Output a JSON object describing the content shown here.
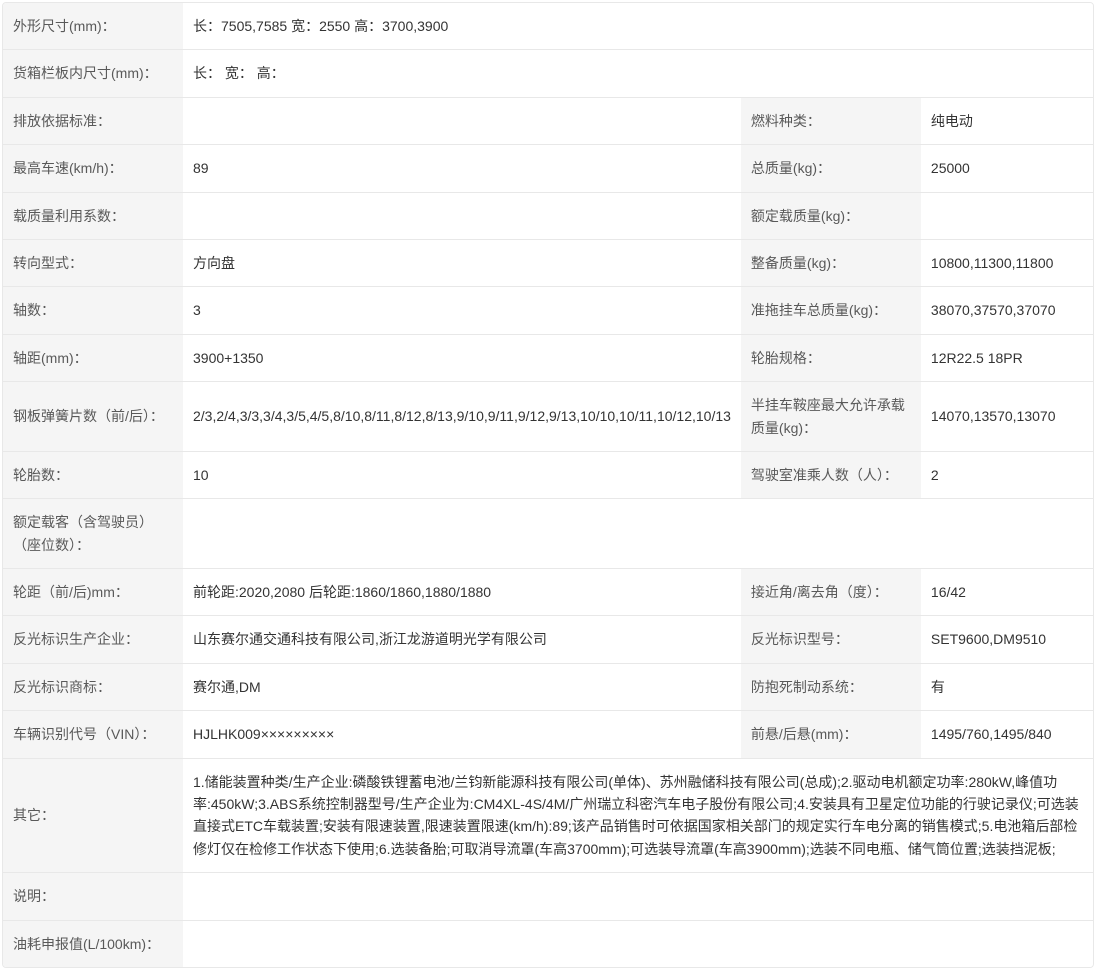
{
  "rows": [
    {
      "type": "full",
      "label": "外形尺寸(mm)：",
      "value": "长：7505,7585 宽：2550 高：3700,3900"
    },
    {
      "type": "full",
      "label": "货箱栏板内尺寸(mm)：",
      "value": "长： 宽： 高："
    },
    {
      "type": "split",
      "label1": "排放依据标准：",
      "value1": "",
      "label2": "燃料种类：",
      "value2": "纯电动"
    },
    {
      "type": "split",
      "label1": "最高车速(km/h)：",
      "value1": "89",
      "label2": "总质量(kg)：",
      "value2": "25000"
    },
    {
      "type": "split",
      "label1": "载质量利用系数：",
      "value1": "",
      "label2": "额定载质量(kg)：",
      "value2": ""
    },
    {
      "type": "split",
      "label1": "转向型式：",
      "value1": "方向盘",
      "label2": "整备质量(kg)：",
      "value2": "10800,11300,11800"
    },
    {
      "type": "split",
      "label1": "轴数：",
      "value1": "3",
      "label2": "准拖挂车总质量(kg)：",
      "value2": "38070,37570,37070"
    },
    {
      "type": "split",
      "label1": "轴距(mm)：",
      "value1": "3900+1350",
      "label2": "轮胎规格：",
      "value2": "12R22.5 18PR"
    },
    {
      "type": "split",
      "label1": "钢板弹簧片数（前/后）：",
      "value1": "2/3,2/4,3/3,3/4,3/5,4/5,8/10,8/11,8/12,8/13,9/10,9/11,9/12,9/13,10/10,10/11,10/12,10/13",
      "label2": "半挂车鞍座最大允许承载质量(kg)：",
      "value2": "14070,13570,13070"
    },
    {
      "type": "split",
      "label1": "轮胎数：",
      "value1": "10",
      "label2": "驾驶室准乘人数（人）：",
      "value2": "2"
    },
    {
      "type": "full",
      "label": "额定载客（含驾驶员）（座位数）：",
      "value": ""
    },
    {
      "type": "split",
      "label1": "轮距（前/后)mm：",
      "value1": "前轮距:2020,2080 后轮距:1860/1860,1880/1880",
      "label2": "接近角/离去角（度）：",
      "value2": "16/42"
    },
    {
      "type": "split",
      "label1": "反光标识生产企业：",
      "value1": "山东赛尔通交通科技有限公司,浙江龙游道明光学有限公司",
      "label2": "反光标识型号：",
      "value2": "SET9600,DM9510"
    },
    {
      "type": "split",
      "label1": "反光标识商标：",
      "value1": "赛尔通,DM",
      "label2": "防抱死制动系统：",
      "value2": "有"
    },
    {
      "type": "split",
      "label1": "车辆识别代号（VIN）：",
      "value1": "HJLHK009×××××××××",
      "label2": "前悬/后悬(mm)：",
      "value2": "1495/760,1495/840"
    },
    {
      "type": "full",
      "label": "其它：",
      "value": "1.储能装置种类/生产企业:磷酸铁锂蓄电池/兰钧新能源科技有限公司(单体)、苏州融储科技有限公司(总成);2.驱动电机额定功率:280kW,峰值功率:450kW;3.ABS系统控制器型号/生产企业为:CM4XL-4S/4M/广州瑞立科密汽车电子股份有限公司;4.安装具有卫星定位功能的行驶记录仪;可选装直接式ETC车载装置;安装有限速装置,限速装置限速(km/h):89;该产品销售时可依据国家相关部门的规定实行车电分离的销售模式;5.电池箱后部检修灯仅在检修工作状态下使用;6.选装备胎;可取消导流罩(车高3700mm);可选装导流罩(车高3900mm);选装不同电瓶、储气筒位置;选装挡泥板;"
    },
    {
      "type": "full",
      "label": "说明：",
      "value": ""
    },
    {
      "type": "full",
      "label": "油耗申报值(L/100km)：",
      "value": ""
    }
  ],
  "colors": {
    "label_bg": "#f5f5f5",
    "value_bg": "#ffffff",
    "border": "#e8e8e8",
    "label_text": "#595959",
    "value_text": "#333333"
  }
}
